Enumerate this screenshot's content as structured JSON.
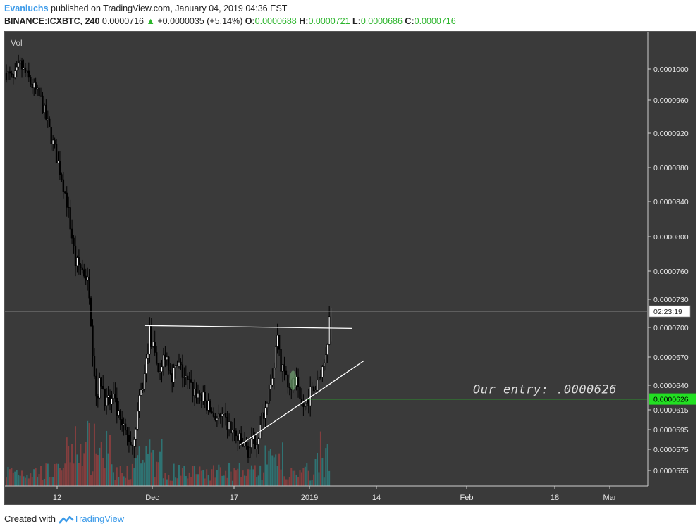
{
  "header": {
    "author": "Evanluchs",
    "published_text": " published on TradingView.com, January 04, 2019 04:36 EST",
    "symbol": "BINANCE:ICXBTC, 240",
    "last_price": "0.0000716",
    "change": "+0.0000035 (+5.14%)",
    "open_label": "O:",
    "open": "0.0000688",
    "high_label": "H:",
    "high": "0.0000721",
    "low_label": "L:",
    "low": "0.0000686",
    "close_label": "C:",
    "close": "0.0000716"
  },
  "footer": {
    "created_with": "Created with",
    "brand": "TradingView"
  },
  "colors": {
    "background": "#3a3a3a",
    "up_volume": "#2f7a7a",
    "down_volume": "#8c3f3f",
    "candles": "#000000",
    "trendlines": "#ffffff",
    "entry_line": "#22e022",
    "annotation_text": "#dddddd",
    "highlight_ellipse": "#7fbf7f"
  },
  "chart_data": {
    "type": "candlestick",
    "volume_label": "Vol",
    "y_axis_ticks": [
      "0.0001000",
      "0.0000960",
      "0.0000920",
      "0.0000880",
      "0.0000840",
      "0.0000800",
      "0.0000760",
      "0.0000730",
      "0.0000700",
      "0.0000670",
      "0.0000640",
      "0.0000615",
      "0.0000595",
      "0.0000575",
      "0.0000555"
    ],
    "x_axis_ticks": [
      "12",
      "Dec",
      "17",
      "2019",
      "14",
      "Feb",
      "18",
      "Mar"
    ],
    "countdown_label": "02:23:19",
    "entry_price_label": "0.0000626",
    "entry_value": 6.26e-05,
    "annotation": "Our entry: .0000626",
    "price_path": [
      [
        0,
        9.95e-05
      ],
      [
        4,
        9.85e-05
      ],
      [
        8,
        0.0001005
      ],
      [
        12,
        9.9e-05
      ],
      [
        16,
        9.75e-05
      ],
      [
        20,
        9.6e-05
      ],
      [
        24,
        9.3e-05
      ],
      [
        28,
        9e-05
      ],
      [
        32,
        8.7e-05
      ],
      [
        35,
        8.4e-05
      ],
      [
        38,
        8e-05
      ],
      [
        40,
        7.7e-05
      ],
      [
        43,
        7.65e-05
      ],
      [
        46,
        7.55e-05
      ],
      [
        48,
        7.4e-05
      ],
      [
        50,
        6.8e-05
      ],
      [
        52,
        6.3e-05
      ],
      [
        55,
        6.45e-05
      ],
      [
        58,
        6.2e-05
      ],
      [
        62,
        6.25e-05
      ],
      [
        66,
        6e-05
      ],
      [
        70,
        5.88e-05
      ],
      [
        73,
        5.8e-05
      ],
      [
        76,
        6.12e-05
      ],
      [
        80,
        6.5e-05
      ],
      [
        83,
        6.95e-05
      ],
      [
        86,
        6.68e-05
      ],
      [
        89,
        6.55e-05
      ],
      [
        92,
        6.75e-05
      ],
      [
        96,
        6.52e-05
      ],
      [
        100,
        6.6e-05
      ],
      [
        104,
        6.45e-05
      ],
      [
        108,
        6.35e-05
      ],
      [
        112,
        6.3e-05
      ],
      [
        116,
        6.2e-05
      ],
      [
        120,
        6.1e-05
      ],
      [
        124,
        6.05e-05
      ],
      [
        128,
        6e-05
      ],
      [
        132,
        5.9e-05
      ],
      [
        136,
        5.8e-05
      ],
      [
        140,
        5.75e-05
      ],
      [
        143,
        5.8e-05
      ],
      [
        146,
        5.9e-05
      ],
      [
        149,
        6.12e-05
      ],
      [
        152,
        6.4e-05
      ],
      [
        155,
        6.6e-05
      ],
      [
        157,
        6.95e-05
      ],
      [
        159,
        6.6e-05
      ],
      [
        162,
        6.48e-05
      ],
      [
        165,
        6.4e-05
      ],
      [
        168,
        6.42e-05
      ],
      [
        170,
        6.18e-05
      ],
      [
        173,
        6.2e-05
      ],
      [
        176,
        6.32e-05
      ],
      [
        180,
        6.4e-05
      ],
      [
        184,
        6.65e-05
      ],
      [
        186,
        6.9e-05
      ],
      [
        187,
        7.1e-05
      ]
    ],
    "series": [
      {
        "name": "Vol",
        "type": "bar"
      }
    ],
    "trendlines": {
      "resistance": {
        "from": [
          80,
          7.02e-05
        ],
        "to": [
          200,
          6.99e-05
        ]
      },
      "support": {
        "from": [
          135,
          5.79e-05
        ],
        "to": [
          207,
          6.66e-05
        ]
      }
    }
  }
}
